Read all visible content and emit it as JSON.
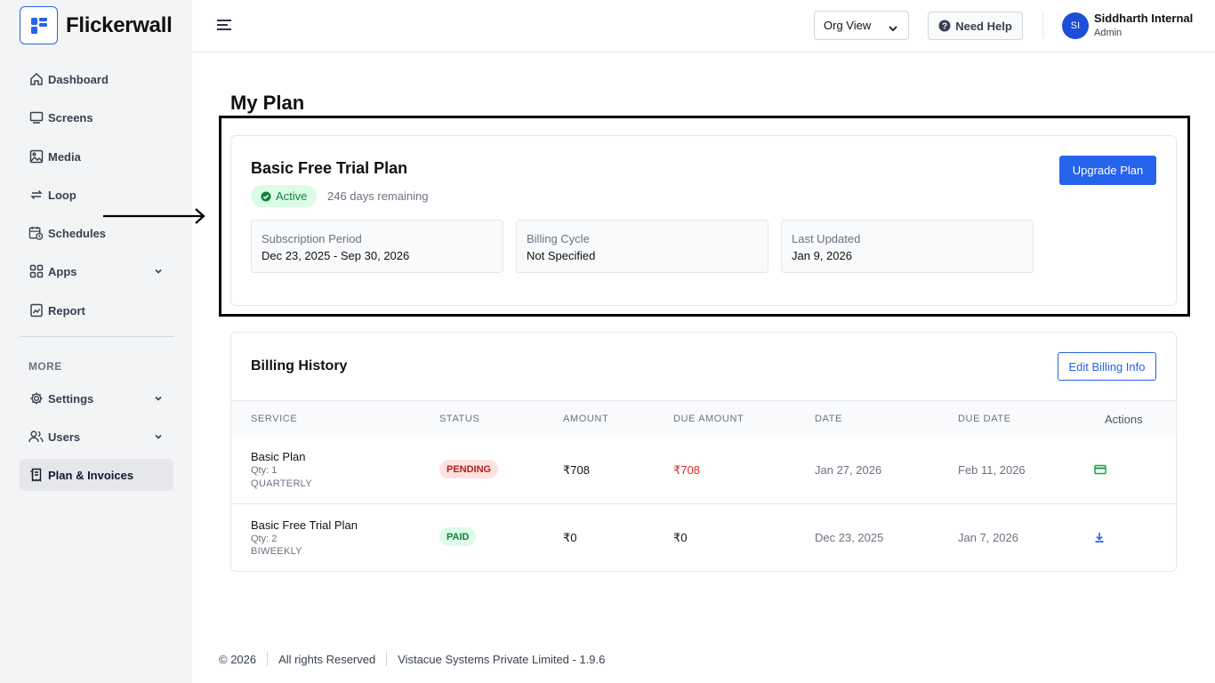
{
  "app": {
    "name": "Flickerwall"
  },
  "sidebar": {
    "items": [
      {
        "label": "Dashboard",
        "icon": "home-icon"
      },
      {
        "label": "Screens",
        "icon": "monitor-icon"
      },
      {
        "label": "Media",
        "icon": "image-icon"
      },
      {
        "label": "Loop",
        "icon": "loop-icon"
      },
      {
        "label": "Schedules",
        "icon": "calendar-clock-icon"
      },
      {
        "label": "Apps",
        "icon": "grid-icon"
      },
      {
        "label": "Report",
        "icon": "report-icon"
      }
    ],
    "more_label": "MORE",
    "more_items": [
      {
        "label": "Settings",
        "icon": "gear-icon"
      },
      {
        "label": "Users",
        "icon": "users-icon"
      },
      {
        "label": "Plan & Invoices",
        "icon": "receipt-icon"
      }
    ]
  },
  "topbar": {
    "org_view": "Org View",
    "help_label": "Need Help",
    "user_initials": "SI",
    "user_name": "Siddharth Internal",
    "user_role": "Admin"
  },
  "page": {
    "title": "My Plan"
  },
  "plan": {
    "name": "Basic Free Trial Plan",
    "status": "Active",
    "days_remaining": "246 days remaining",
    "upgrade_label": "Upgrade Plan",
    "info": [
      {
        "label": "Subscription Period",
        "value": "Dec 23, 2025 - Sep 30, 2026"
      },
      {
        "label": "Billing Cycle",
        "value": "Not Specified"
      },
      {
        "label": "Last Updated",
        "value": "Jan 9, 2026"
      }
    ]
  },
  "billing": {
    "title": "Billing History",
    "edit_label": "Edit Billing Info",
    "columns": [
      "SERVICE",
      "STATUS",
      "AMOUNT",
      "DUE AMOUNT",
      "DATE",
      "DUE DATE",
      "Actions"
    ],
    "rows": [
      {
        "service": "Basic Plan",
        "qty": "Qty: 1",
        "cycle": "QUARTERLY",
        "status": "PENDING",
        "amount": "₹708",
        "due_amount": "₹708",
        "date": "Jan 27, 2026",
        "due_date": "Feb 11, 2026",
        "action_icon": "credit-card-icon"
      },
      {
        "service": "Basic Free Trial Plan",
        "qty": "Qty: 2",
        "cycle": "BIWEEKLY",
        "status": "PAID",
        "amount": "₹0",
        "due_amount": "₹0",
        "date": "Dec 23, 2025",
        "due_date": "Jan 7, 2026",
        "action_icon": "download-icon"
      }
    ]
  },
  "footer": {
    "copyright": "© 2026",
    "rights": "All rights Reserved",
    "company": "Vistacue Systems Private Limited - 1.9.6"
  },
  "colors": {
    "primary": "#2563eb",
    "active_green": "#15803d",
    "pending_red": "#b91c1c"
  }
}
